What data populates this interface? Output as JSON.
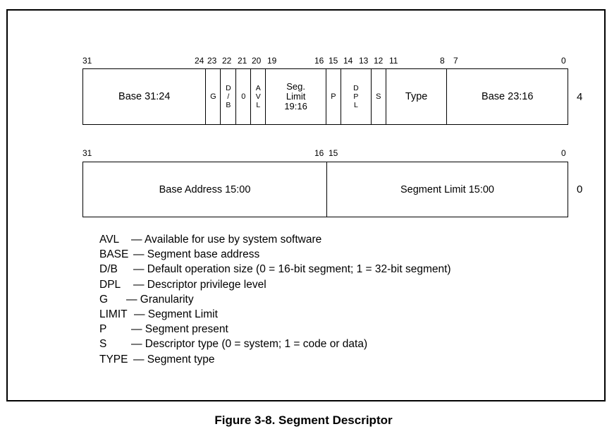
{
  "upper": {
    "offset": "4",
    "bits": {
      "b31": "31",
      "b24": "24",
      "b23": "23",
      "b22": "22",
      "b21": "21",
      "b20": "20",
      "b19": "19",
      "b16": "16",
      "b15": "15",
      "b14": "14",
      "b13": "13",
      "b12": "12",
      "b11": "11",
      "b8": "8",
      "b7": "7",
      "b0": "0"
    },
    "fields": {
      "base_31_24": "Base 31:24",
      "g": "G",
      "db": [
        "D",
        "/",
        "B"
      ],
      "zero": "0",
      "avl": [
        "A",
        "V",
        "L"
      ],
      "seg_limit": [
        "Seg.",
        "Limit",
        "19:16"
      ],
      "p": "P",
      "dpl": [
        "D",
        "P",
        "L"
      ],
      "s": "S",
      "type": "Type",
      "base_23_16": "Base 23:16"
    }
  },
  "lower": {
    "offset": "0",
    "bits": {
      "b31": "31",
      "b16": "16",
      "b15": "15",
      "b0": "0"
    },
    "fields": {
      "base_address": "Base Address 15:00",
      "segment_limit": "Segment Limit 15:00"
    }
  },
  "legend": [
    {
      "key": "AVL",
      "desc": "— Available for use by system software"
    },
    {
      "key": "BASE",
      "desc": "— Segment base address"
    },
    {
      "key": "D/B",
      "desc": "— Default operation size (0 = 16-bit segment; 1 = 32-bit segment)"
    },
    {
      "key": "DPL",
      "desc": "— Descriptor privilege level"
    },
    {
      "key": "G",
      "desc": "— Granularity"
    },
    {
      "key": "LIMIT",
      "desc": "— Segment Limit"
    },
    {
      "key": "P",
      "desc": "— Segment present"
    },
    {
      "key": "S",
      "desc": "— Descriptor type (0 = system; 1 = code or data)"
    },
    {
      "key": "TYPE",
      "desc": "— Segment type"
    }
  ],
  "caption": "Figure 3-8.  Segment Descriptor"
}
